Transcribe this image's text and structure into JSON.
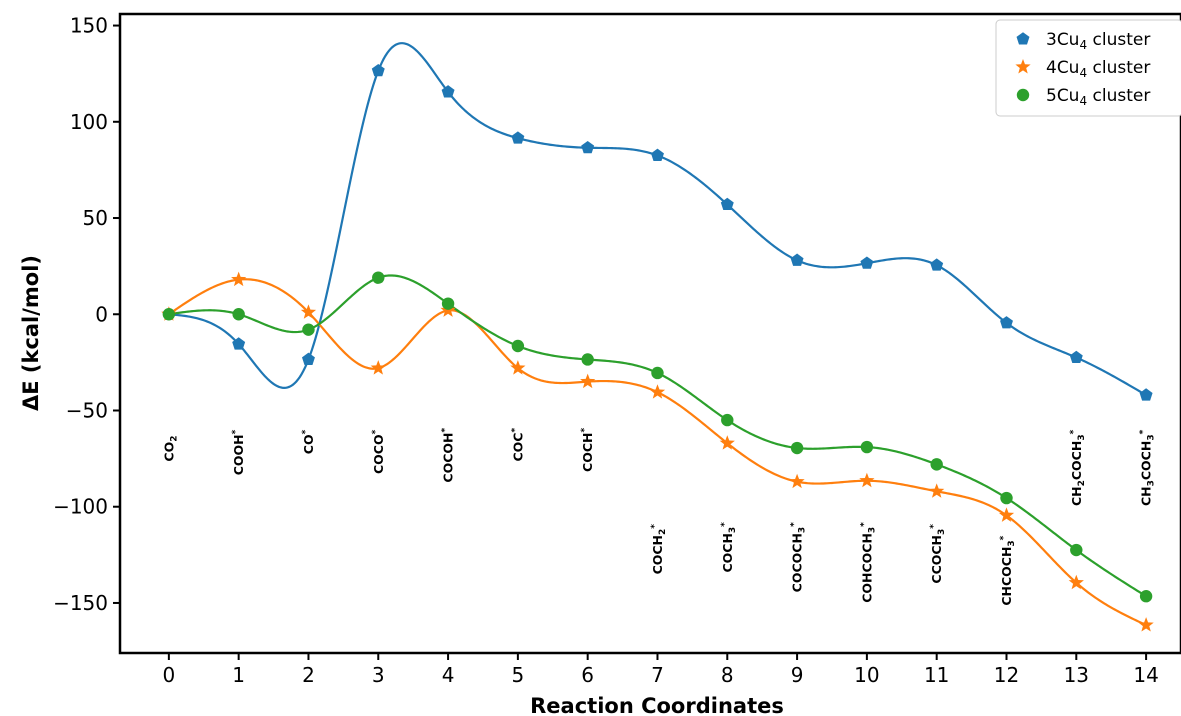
{
  "chart_data": {
    "type": "line",
    "xlabel": "Reaction Coordinates",
    "ylabel": "ΔE (kcal/mol)",
    "xlim": [
      -0.7,
      14.5
    ],
    "ylim": [
      -176,
      156
    ],
    "x_ticks": [
      0,
      1,
      2,
      3,
      4,
      5,
      6,
      7,
      8,
      9,
      10,
      11,
      12,
      13,
      14
    ],
    "y_ticks": [
      -150,
      -100,
      -50,
      0,
      50,
      100,
      150
    ],
    "y_tick_labels": [
      "−150",
      "−100",
      "−50",
      "0",
      "50",
      "100",
      "150"
    ],
    "grid": false,
    "legend_position": "top-right",
    "x": [
      0,
      1,
      2,
      3,
      4,
      5,
      6,
      7,
      8,
      9,
      10,
      11,
      12,
      13,
      14
    ],
    "series": [
      {
        "name": [
          "3Cu",
          "4",
          " cluster"
        ],
        "color": "#1f77b4",
        "marker": "pentagon",
        "values": [
          0,
          -15.5,
          -23.5,
          126.5,
          115.5,
          91.5,
          86.5,
          82.5,
          57,
          28,
          26.5,
          25.5,
          -4.5,
          -22.5,
          -42
        ]
      },
      {
        "name": [
          "4Cu",
          "4",
          " cluster"
        ],
        "color": "#ff7f0e",
        "marker": "star",
        "values": [
          0,
          18,
          1,
          -28,
          2,
          -28,
          -35,
          -40.5,
          -67,
          -87,
          -86.5,
          -92,
          -104.5,
          -139.5,
          -161.5
        ]
      },
      {
        "name": [
          "5Cu",
          "4",
          " cluster"
        ],
        "color": "#2ca02c",
        "marker": "circle",
        "values": [
          0,
          0,
          -8,
          19,
          5.5,
          -16.5,
          -23.5,
          -30.5,
          -55,
          -69.5,
          -69,
          -78,
          -95.5,
          -122.5,
          -146.5
        ]
      }
    ],
    "annotations": [
      {
        "x": 0,
        "y_top": -63,
        "parts": [
          [
            "CO",
            ""
          ],
          [
            "2",
            "sub"
          ]
        ]
      },
      {
        "x": 1,
        "y_top": -60,
        "parts": [
          [
            "COOH",
            ""
          ],
          [
            "*",
            "sup"
          ]
        ]
      },
      {
        "x": 2,
        "y_top": -60,
        "parts": [
          [
            "CO",
            ""
          ],
          [
            "*",
            "sup"
          ]
        ]
      },
      {
        "x": 3,
        "y_top": -60,
        "parts": [
          [
            "COCO",
            ""
          ],
          [
            "*",
            "sup"
          ]
        ]
      },
      {
        "x": 4,
        "y_top": -59,
        "parts": [
          [
            "COCOH",
            ""
          ],
          [
            "*",
            "sup"
          ]
        ]
      },
      {
        "x": 5,
        "y_top": -59,
        "parts": [
          [
            "COC",
            ""
          ],
          [
            "*",
            "sup"
          ]
        ]
      },
      {
        "x": 6,
        "y_top": -59,
        "parts": [
          [
            "COCH",
            ""
          ],
          [
            "*",
            "sup"
          ]
        ]
      },
      {
        "x": 7,
        "y_top": -109,
        "parts": [
          [
            "COCH",
            ""
          ],
          [
            "2",
            "sub"
          ],
          [
            "*",
            "sup"
          ]
        ]
      },
      {
        "x": 8,
        "y_top": -108,
        "parts": [
          [
            "COCH",
            ""
          ],
          [
            "3",
            "sub"
          ],
          [
            "*",
            "sup"
          ]
        ]
      },
      {
        "x": 9,
        "y_top": -108,
        "parts": [
          [
            "COCOCH",
            ""
          ],
          [
            "3",
            "sub"
          ],
          [
            "*",
            "sup"
          ]
        ]
      },
      {
        "x": 10,
        "y_top": -108,
        "parts": [
          [
            "COHCOCH",
            ""
          ],
          [
            "3",
            "sub"
          ],
          [
            "*",
            "sup"
          ]
        ]
      },
      {
        "x": 11,
        "y_top": -109,
        "parts": [
          [
            "CCOCH",
            ""
          ],
          [
            "3",
            "sub"
          ],
          [
            "*",
            "sup"
          ]
        ]
      },
      {
        "x": 12,
        "y_top": -115,
        "parts": [
          [
            "CHCOCH",
            ""
          ],
          [
            "3",
            "sub"
          ],
          [
            "*",
            "sup"
          ]
        ]
      },
      {
        "x": 13,
        "y_top": -60,
        "parts": [
          [
            "CH",
            ""
          ],
          [
            "2",
            "sub"
          ],
          [
            "COCH",
            ""
          ],
          [
            "3",
            "sub"
          ],
          [
            "*",
            "sup"
          ]
        ]
      },
      {
        "x": 14,
        "y_top": -60,
        "parts": [
          [
            "CH",
            ""
          ],
          [
            "3",
            "sub"
          ],
          [
            "COCH",
            ""
          ],
          [
            "3",
            "sub"
          ],
          [
            "*",
            "sup"
          ]
        ]
      }
    ]
  }
}
